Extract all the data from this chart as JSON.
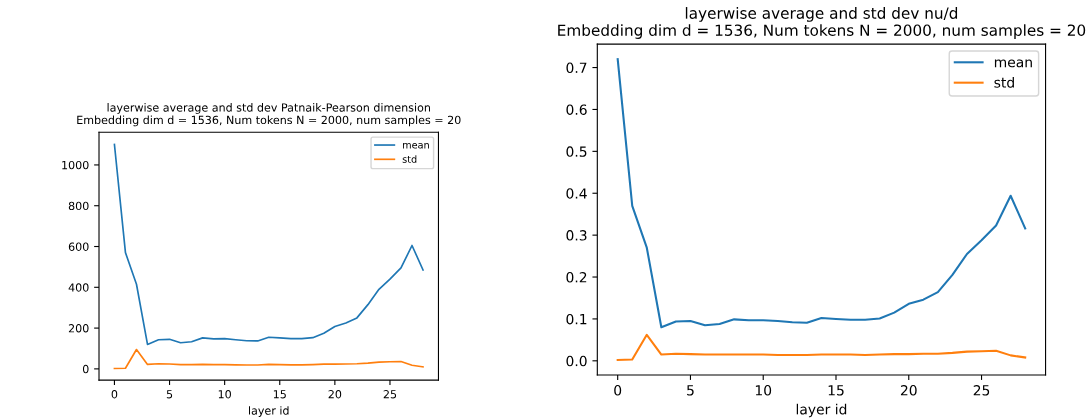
{
  "chart_data": [
    {
      "type": "line",
      "title": "layerwise average and std dev Patnaik-Pearson dimension",
      "subtitle": "Embedding dim d = 1536, Num tokens N = 2000, num samples = 20",
      "xlabel": "layer id",
      "x": [
        0,
        1,
        2,
        3,
        4,
        5,
        6,
        7,
        8,
        9,
        10,
        11,
        12,
        13,
        14,
        15,
        16,
        17,
        18,
        19,
        20,
        21,
        22,
        23,
        24,
        25,
        26,
        27,
        28
      ],
      "series": [
        {
          "name": "mean",
          "color": "#1f77b4",
          "values": [
            1100,
            570,
            415,
            120,
            143,
            145,
            128,
            133,
            152,
            147,
            148,
            143,
            138,
            137,
            155,
            152,
            148,
            148,
            153,
            175,
            208,
            225,
            250,
            315,
            390,
            440,
            495,
            605,
            485
          ]
        },
        {
          "name": "std",
          "color": "#ff7f0e",
          "values": [
            2,
            3,
            95,
            22,
            25,
            24,
            21,
            21,
            22,
            21,
            21,
            20,
            19,
            19,
            22,
            21,
            20,
            20,
            21,
            23,
            23,
            24,
            25,
            28,
            33,
            35,
            36,
            18,
            10
          ]
        }
      ],
      "xlim": [
        -1.4,
        29.4
      ],
      "xticks": [
        0,
        5,
        10,
        15,
        20,
        25
      ],
      "ylim": [
        -55,
        1160
      ],
      "yticks": [
        0,
        200,
        400,
        600,
        800,
        1000
      ],
      "legend": "top right",
      "grid": false
    },
    {
      "type": "line",
      "title": "layerwise average and std dev nu/d",
      "subtitle": "Embedding dim d = 1536, Num tokens N = 2000, num samples = 20",
      "xlabel": "layer id",
      "x": [
        0,
        1,
        2,
        3,
        4,
        5,
        6,
        7,
        8,
        9,
        10,
        11,
        12,
        13,
        14,
        15,
        16,
        17,
        18,
        19,
        20,
        21,
        22,
        23,
        24,
        25,
        26,
        27,
        28
      ],
      "series": [
        {
          "name": "mean",
          "color": "#1f77b4",
          "values": [
            0.72,
            0.37,
            0.27,
            0.08,
            0.094,
            0.095,
            0.085,
            0.088,
            0.099,
            0.097,
            0.097,
            0.095,
            0.092,
            0.091,
            0.102,
            0.1,
            0.098,
            0.098,
            0.101,
            0.115,
            0.136,
            0.146,
            0.164,
            0.205,
            0.255,
            0.288,
            0.323,
            0.394,
            0.316
          ]
        },
        {
          "name": "std",
          "color": "#ff7f0e",
          "values": [
            0.002,
            0.003,
            0.062,
            0.015,
            0.017,
            0.016,
            0.015,
            0.015,
            0.015,
            0.015,
            0.015,
            0.014,
            0.014,
            0.014,
            0.015,
            0.015,
            0.015,
            0.014,
            0.015,
            0.016,
            0.016,
            0.017,
            0.017,
            0.019,
            0.022,
            0.023,
            0.024,
            0.013,
            0.008
          ]
        }
      ],
      "xlim": [
        -1.4,
        29.4
      ],
      "xticks": [
        0,
        5,
        10,
        15,
        20,
        25
      ],
      "ylim": [
        -0.034,
        0.756
      ],
      "yticks": [
        {
          "value": 0,
          "label": "0.0"
        },
        0.1,
        0.2,
        0.3,
        0.4,
        0.5,
        0.6,
        0.7
      ],
      "legend": "top right",
      "grid": false
    }
  ]
}
